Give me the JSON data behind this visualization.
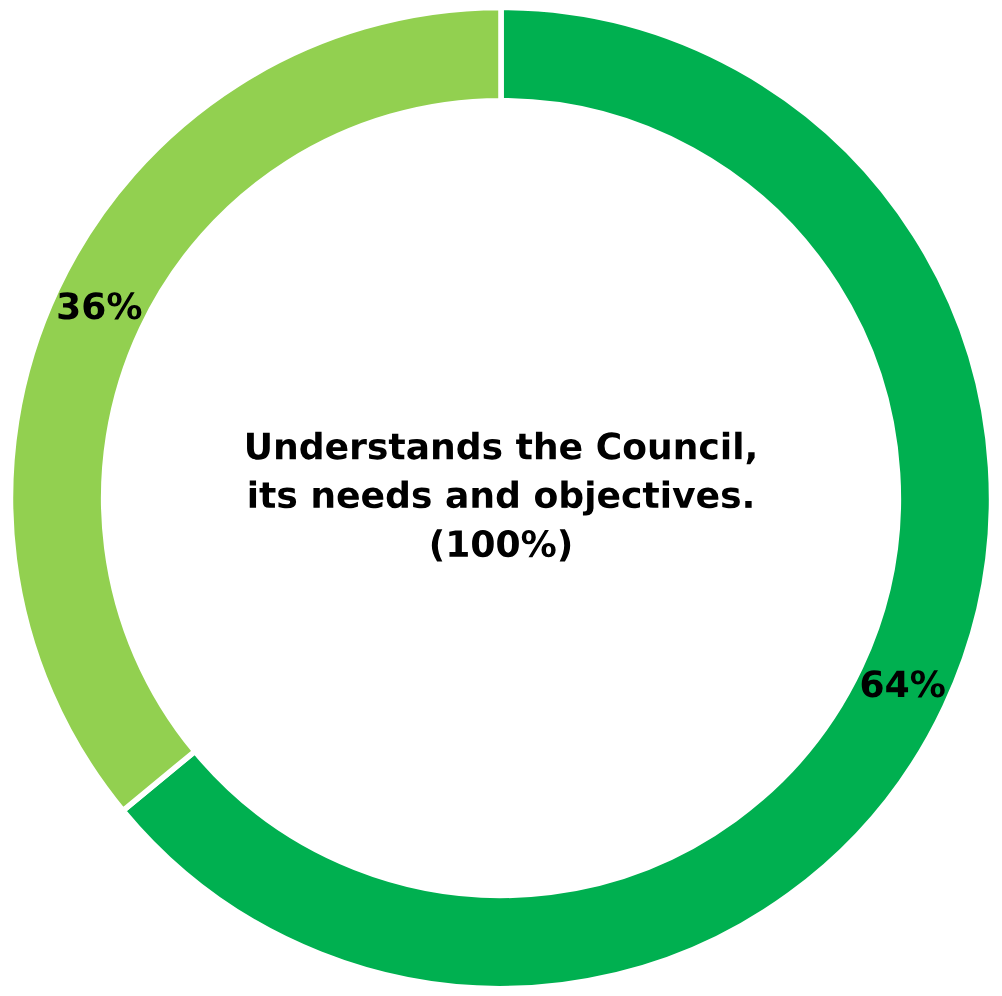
{
  "chart_data": {
    "type": "donut",
    "title": "Understands the Council,\nits needs and objectives.\n(100%)",
    "categories": [
      null,
      null
    ],
    "values": [
      64,
      36
    ],
    "colors": [
      "#00b050",
      "#92d050"
    ],
    "value_labels": [
      "64%",
      "36%"
    ],
    "legend": false
  }
}
